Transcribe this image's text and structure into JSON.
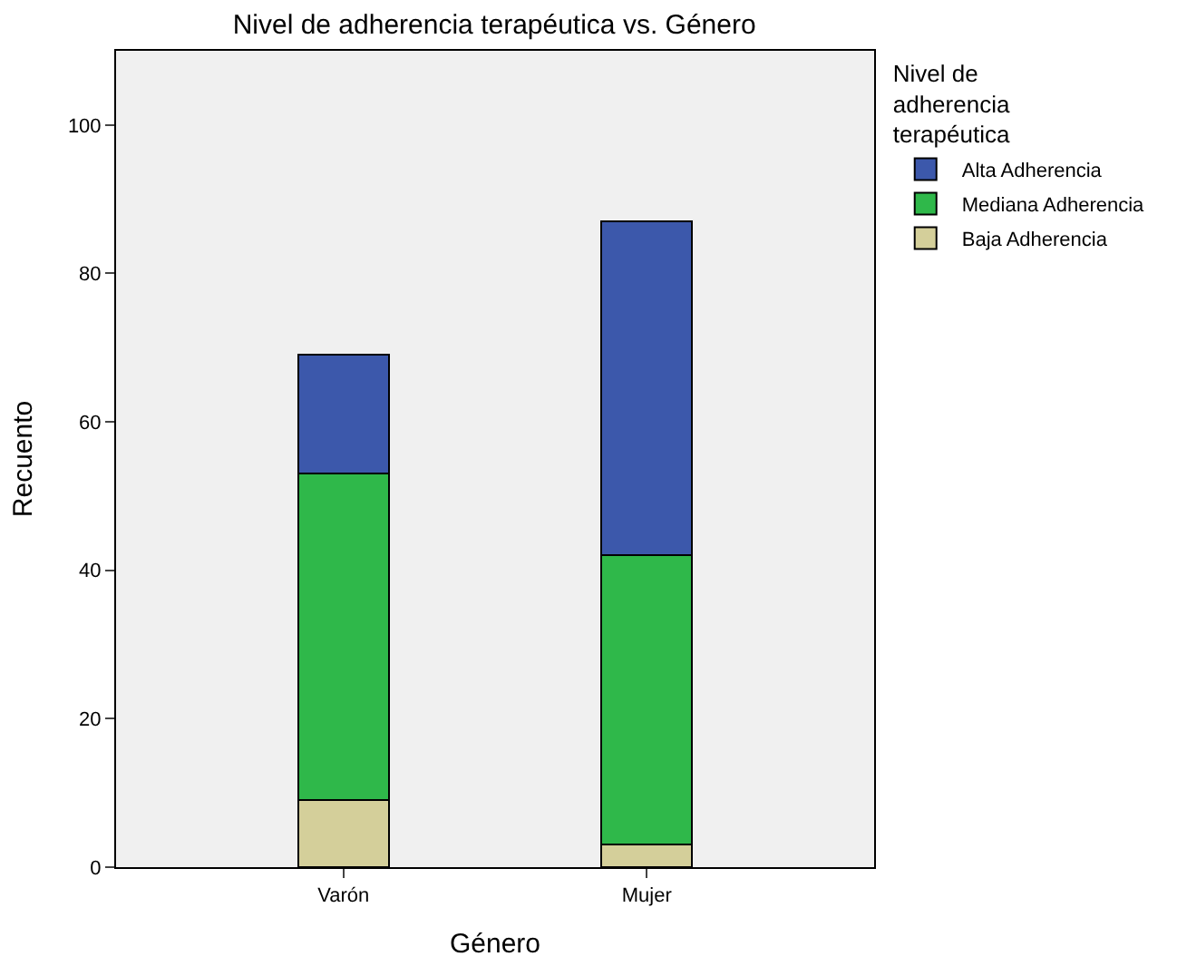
{
  "chart_data": {
    "type": "bar",
    "title": "Nivel de adherencia terapéutica vs. Género",
    "xlabel": "Género",
    "ylabel": "Recuento",
    "legend_title": "Nivel de adherencia terapéutica",
    "categories": [
      "Varón",
      "Mujer"
    ],
    "stacked": true,
    "ylim": [
      0,
      110
    ],
    "yticks": [
      0,
      20,
      40,
      60,
      80,
      100
    ],
    "grid": false,
    "legend": "top right",
    "series": [
      {
        "name": "Baja Adherencia",
        "color": "#d4cf9a",
        "values": [
          9,
          3
        ]
      },
      {
        "name": "Mediana Adherencia",
        "color": "#2fb84a",
        "values": [
          44,
          39
        ]
      },
      {
        "name": "Alta Adherencia",
        "color": "#3c58ab",
        "values": [
          16,
          45
        ]
      }
    ]
  }
}
